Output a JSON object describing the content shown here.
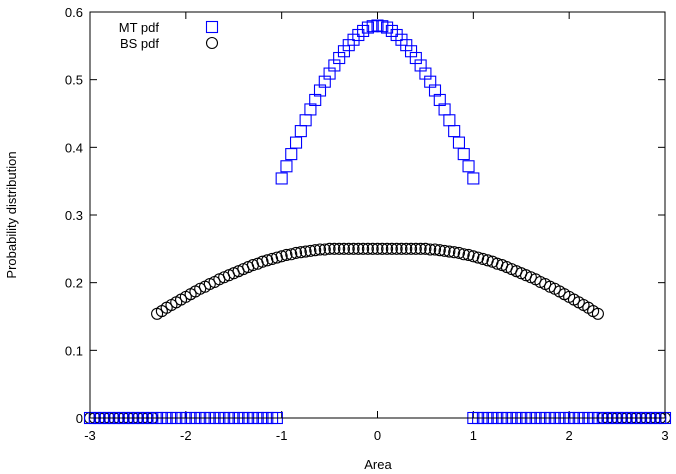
{
  "chart_data": {
    "type": "scatter",
    "xlabel": "Area",
    "ylabel": "Probability distribution",
    "xlim": [
      -3,
      3
    ],
    "ylim": [
      0,
      0.6
    ],
    "xticks": [
      -3,
      -2,
      -1,
      0,
      1,
      2,
      3
    ],
    "yticks": [
      0,
      0.1,
      0.2,
      0.3,
      0.4,
      0.5,
      0.6
    ],
    "xtick_labels": [
      "-3",
      "-2",
      "-1",
      "0",
      "1",
      "2",
      "3"
    ],
    "ytick_labels": [
      "0",
      "0.1",
      "0.2",
      "0.3",
      "0.4",
      "0.5",
      "0.6"
    ],
    "grid": false,
    "legend_position": "top-left",
    "series": [
      {
        "name": "MT pdf",
        "marker": "square",
        "color": "#0000ff",
        "points": [
          [
            -3.0,
            0
          ],
          [
            -2.95,
            0
          ],
          [
            -2.9,
            0
          ],
          [
            -2.85,
            0
          ],
          [
            -2.8,
            0
          ],
          [
            -2.75,
            0
          ],
          [
            -2.7,
            0
          ],
          [
            -2.65,
            0
          ],
          [
            -2.6,
            0
          ],
          [
            -2.55,
            0
          ],
          [
            -2.5,
            0
          ],
          [
            -2.45,
            0
          ],
          [
            -2.4,
            0
          ],
          [
            -2.35,
            0
          ],
          [
            -2.3,
            0
          ],
          [
            -2.25,
            0
          ],
          [
            -2.2,
            0
          ],
          [
            -2.15,
            0
          ],
          [
            -2.1,
            0
          ],
          [
            -2.05,
            0
          ],
          [
            -2.0,
            0
          ],
          [
            -1.95,
            0
          ],
          [
            -1.9,
            0
          ],
          [
            -1.85,
            0
          ],
          [
            -1.8,
            0
          ],
          [
            -1.75,
            0
          ],
          [
            -1.7,
            0
          ],
          [
            -1.65,
            0
          ],
          [
            -1.6,
            0
          ],
          [
            -1.55,
            0
          ],
          [
            -1.5,
            0
          ],
          [
            -1.45,
            0
          ],
          [
            -1.4,
            0
          ],
          [
            -1.35,
            0
          ],
          [
            -1.3,
            0
          ],
          [
            -1.25,
            0
          ],
          [
            -1.2,
            0
          ],
          [
            -1.15,
            0
          ],
          [
            -1.1,
            0
          ],
          [
            -1.05,
            0
          ],
          [
            -1.0,
            0.354
          ],
          [
            -0.95,
            0.372
          ],
          [
            -0.9,
            0.39
          ],
          [
            -0.85,
            0.407
          ],
          [
            -0.8,
            0.424
          ],
          [
            -0.75,
            0.44
          ],
          [
            -0.7,
            0.456
          ],
          [
            -0.65,
            0.47
          ],
          [
            -0.6,
            0.484
          ],
          [
            -0.55,
            0.497
          ],
          [
            -0.5,
            0.509
          ],
          [
            -0.45,
            0.521
          ],
          [
            -0.4,
            0.532
          ],
          [
            -0.35,
            0.542
          ],
          [
            -0.3,
            0.551
          ],
          [
            -0.25,
            0.559
          ],
          [
            -0.2,
            0.566
          ],
          [
            -0.15,
            0.572
          ],
          [
            -0.1,
            0.577
          ],
          [
            -0.05,
            0.579
          ],
          [
            0.0,
            0.58
          ],
          [
            0.05,
            0.579
          ],
          [
            0.1,
            0.577
          ],
          [
            0.15,
            0.572
          ],
          [
            0.2,
            0.566
          ],
          [
            0.25,
            0.559
          ],
          [
            0.3,
            0.551
          ],
          [
            0.35,
            0.542
          ],
          [
            0.4,
            0.532
          ],
          [
            0.45,
            0.521
          ],
          [
            0.5,
            0.509
          ],
          [
            0.55,
            0.497
          ],
          [
            0.6,
            0.484
          ],
          [
            0.65,
            0.47
          ],
          [
            0.7,
            0.456
          ],
          [
            0.75,
            0.44
          ],
          [
            0.8,
            0.424
          ],
          [
            0.85,
            0.407
          ],
          [
            0.9,
            0.39
          ],
          [
            0.95,
            0.372
          ],
          [
            1.0,
            0.354
          ],
          [
            1.0,
            0
          ],
          [
            1.05,
            0
          ],
          [
            1.1,
            0
          ],
          [
            1.15,
            0
          ],
          [
            1.2,
            0
          ],
          [
            1.25,
            0
          ],
          [
            1.3,
            0
          ],
          [
            1.35,
            0
          ],
          [
            1.4,
            0
          ],
          [
            1.45,
            0
          ],
          [
            1.5,
            0
          ],
          [
            1.55,
            0
          ],
          [
            1.6,
            0
          ],
          [
            1.65,
            0
          ],
          [
            1.7,
            0
          ],
          [
            1.75,
            0
          ],
          [
            1.8,
            0
          ],
          [
            1.85,
            0
          ],
          [
            1.9,
            0
          ],
          [
            1.95,
            0
          ],
          [
            2.0,
            0
          ],
          [
            2.05,
            0
          ],
          [
            2.1,
            0
          ],
          [
            2.15,
            0
          ],
          [
            2.2,
            0
          ],
          [
            2.25,
            0
          ],
          [
            2.3,
            0
          ],
          [
            2.35,
            0
          ],
          [
            2.4,
            0
          ],
          [
            2.45,
            0
          ],
          [
            2.5,
            0
          ],
          [
            2.55,
            0
          ],
          [
            2.6,
            0
          ],
          [
            2.65,
            0
          ],
          [
            2.7,
            0
          ],
          [
            2.75,
            0
          ],
          [
            2.8,
            0
          ],
          [
            2.85,
            0
          ],
          [
            2.9,
            0
          ],
          [
            2.95,
            0
          ],
          [
            3.0,
            0
          ]
        ]
      },
      {
        "name": "BS pdf",
        "marker": "circle",
        "color": "#000000",
        "points": [
          [
            -3.0,
            0
          ],
          [
            -2.95,
            0
          ],
          [
            -2.9,
            0
          ],
          [
            -2.85,
            0
          ],
          [
            -2.8,
            0
          ],
          [
            -2.75,
            0
          ],
          [
            -2.7,
            0
          ],
          [
            -2.65,
            0
          ],
          [
            -2.6,
            0
          ],
          [
            -2.55,
            0
          ],
          [
            -2.5,
            0
          ],
          [
            -2.45,
            0
          ],
          [
            -2.4,
            0
          ],
          [
            -2.35,
            0
          ],
          [
            -2.3,
            0.154
          ],
          [
            -2.25,
            0.158
          ],
          [
            -2.2,
            0.163
          ],
          [
            -2.15,
            0.167
          ],
          [
            -2.1,
            0.171
          ],
          [
            -2.05,
            0.175
          ],
          [
            -2.0,
            0.179
          ],
          [
            -1.95,
            0.183
          ],
          [
            -1.9,
            0.187
          ],
          [
            -1.85,
            0.191
          ],
          [
            -1.8,
            0.194
          ],
          [
            -1.75,
            0.198
          ],
          [
            -1.7,
            0.201
          ],
          [
            -1.65,
            0.205
          ],
          [
            -1.6,
            0.208
          ],
          [
            -1.55,
            0.211
          ],
          [
            -1.5,
            0.214
          ],
          [
            -1.45,
            0.217
          ],
          [
            -1.4,
            0.22
          ],
          [
            -1.35,
            0.223
          ],
          [
            -1.3,
            0.226
          ],
          [
            -1.25,
            0.228
          ],
          [
            -1.2,
            0.231
          ],
          [
            -1.15,
            0.233
          ],
          [
            -1.1,
            0.235
          ],
          [
            -1.05,
            0.237
          ],
          [
            -1.0,
            0.239
          ],
          [
            -0.95,
            0.241
          ],
          [
            -0.9,
            0.242
          ],
          [
            -0.85,
            0.244
          ],
          [
            -0.8,
            0.245
          ],
          [
            -0.75,
            0.246
          ],
          [
            -0.7,
            0.247
          ],
          [
            -0.65,
            0.248
          ],
          [
            -0.6,
            0.249
          ],
          [
            -0.55,
            0.249
          ],
          [
            -0.5,
            0.25
          ],
          [
            -0.45,
            0.25
          ],
          [
            -0.4,
            0.25
          ],
          [
            -0.35,
            0.25
          ],
          [
            -0.3,
            0.25
          ],
          [
            -0.25,
            0.25
          ],
          [
            -0.2,
            0.25
          ],
          [
            -0.15,
            0.25
          ],
          [
            -0.1,
            0.25
          ],
          [
            -0.05,
            0.25
          ],
          [
            0.0,
            0.25
          ],
          [
            0.05,
            0.25
          ],
          [
            0.1,
            0.25
          ],
          [
            0.15,
            0.25
          ],
          [
            0.2,
            0.25
          ],
          [
            0.25,
            0.25
          ],
          [
            0.3,
            0.25
          ],
          [
            0.35,
            0.25
          ],
          [
            0.4,
            0.25
          ],
          [
            0.45,
            0.25
          ],
          [
            0.5,
            0.25
          ],
          [
            0.55,
            0.249
          ],
          [
            0.6,
            0.249
          ],
          [
            0.65,
            0.248
          ],
          [
            0.7,
            0.247
          ],
          [
            0.75,
            0.246
          ],
          [
            0.8,
            0.245
          ],
          [
            0.85,
            0.244
          ],
          [
            0.9,
            0.242
          ],
          [
            0.95,
            0.241
          ],
          [
            1.0,
            0.239
          ],
          [
            1.05,
            0.237
          ],
          [
            1.1,
            0.235
          ],
          [
            1.15,
            0.233
          ],
          [
            1.2,
            0.231
          ],
          [
            1.25,
            0.228
          ],
          [
            1.3,
            0.226
          ],
          [
            1.35,
            0.223
          ],
          [
            1.4,
            0.22
          ],
          [
            1.45,
            0.217
          ],
          [
            1.5,
            0.214
          ],
          [
            1.55,
            0.211
          ],
          [
            1.6,
            0.208
          ],
          [
            1.65,
            0.205
          ],
          [
            1.7,
            0.201
          ],
          [
            1.75,
            0.198
          ],
          [
            1.8,
            0.194
          ],
          [
            1.85,
            0.191
          ],
          [
            1.9,
            0.187
          ],
          [
            1.95,
            0.183
          ],
          [
            2.0,
            0.179
          ],
          [
            2.05,
            0.175
          ],
          [
            2.1,
            0.171
          ],
          [
            2.15,
            0.167
          ],
          [
            2.2,
            0.163
          ],
          [
            2.25,
            0.158
          ],
          [
            2.3,
            0.154
          ],
          [
            2.35,
            0
          ],
          [
            2.4,
            0
          ],
          [
            2.45,
            0
          ],
          [
            2.5,
            0
          ],
          [
            2.55,
            0
          ],
          [
            2.6,
            0
          ],
          [
            2.65,
            0
          ],
          [
            2.7,
            0
          ],
          [
            2.75,
            0
          ],
          [
            2.8,
            0
          ],
          [
            2.85,
            0
          ],
          [
            2.9,
            0
          ],
          [
            2.95,
            0
          ],
          [
            3.0,
            0
          ]
        ]
      }
    ]
  }
}
